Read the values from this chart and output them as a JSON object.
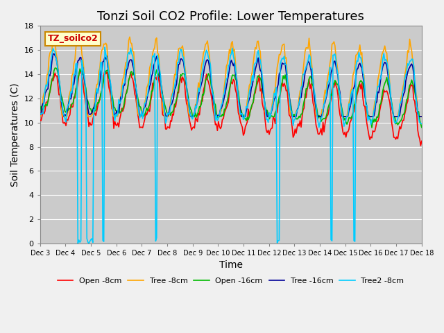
{
  "title": "Tonzi Soil CO2 Profile: Lower Temperatures",
  "xlabel": "Time",
  "ylabel": "Soil Temperatures (C)",
  "ylim": [
    0,
    18
  ],
  "annotation_text": "TZ_soilco2",
  "legend": [
    "Open -8cm",
    "Tree -8cm",
    "Open -16cm",
    "Tree -16cm",
    "Tree2 -8cm"
  ],
  "line_colors": [
    "#ff0000",
    "#ffa500",
    "#00bb00",
    "#000099",
    "#00ccff"
  ],
  "xtick_labels": [
    "Dec 3",
    "Dec 4",
    "Dec 5",
    "Dec 6",
    "Dec 7",
    "Dec 8",
    "Dec 9",
    "Dec 10",
    "Dec 11",
    "Dec 12",
    "Dec 13",
    "Dec 14",
    "Dec 15",
    "Dec 16",
    "Dec 17",
    "Dec 18"
  ],
  "background_color": "#f0f0f0",
  "plot_bg_color": "#d8d8d8",
  "title_fontsize": 13,
  "label_fontsize": 10
}
